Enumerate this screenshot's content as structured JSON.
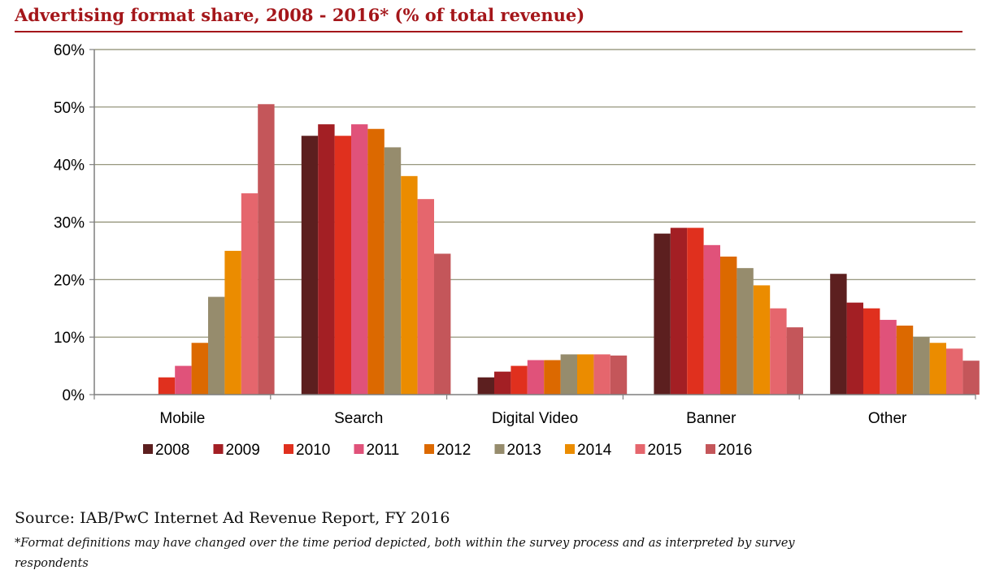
{
  "title": "Advertising format share, 2008 - 2016* (% of total revenue)",
  "source": "Source: IAB/PwC Internet Ad Revenue Report, FY 2016",
  "footnote": "*Format definitions may have changed over the time period depicted, both within the survey process and as interpreted by survey respondents",
  "chart_data": {
    "type": "bar",
    "title": "Advertising format share, 2008 - 2016* (% of total revenue)",
    "xlabel": "",
    "ylabel": "",
    "categories": [
      "Mobile",
      "Search",
      "Digital Video",
      "Banner",
      "Other"
    ],
    "ylim": [
      0,
      60
    ],
    "yticks": [
      0,
      10,
      20,
      30,
      40,
      50,
      60
    ],
    "ytick_labels": [
      "0%",
      "10%",
      "20%",
      "30%",
      "40%",
      "50%",
      "60%"
    ],
    "grid": true,
    "legend_position": "bottom",
    "series": [
      {
        "name": "2008",
        "color": "#5c1f1f",
        "values": [
          0,
          45,
          3,
          28,
          21
        ]
      },
      {
        "name": "2009",
        "color": "#a31f24",
        "values": [
          0,
          47,
          4,
          29,
          16
        ]
      },
      {
        "name": "2010",
        "color": "#e0301e",
        "values": [
          3,
          45,
          5,
          29,
          15
        ]
      },
      {
        "name": "2011",
        "color": "#e0527a",
        "values": [
          5,
          47,
          6,
          26,
          13
        ]
      },
      {
        "name": "2012",
        "color": "#dc6900",
        "values": [
          9,
          46.2,
          6,
          24,
          12
        ]
      },
      {
        "name": "2013",
        "color": "#968c6d",
        "values": [
          17,
          43,
          7,
          22,
          10
        ]
      },
      {
        "name": "2014",
        "color": "#eb8c00",
        "values": [
          25,
          38,
          7,
          19,
          9
        ]
      },
      {
        "name": "2015",
        "color": "#e5666d",
        "values": [
          35,
          34,
          7,
          15,
          8
        ]
      },
      {
        "name": "2016",
        "color": "#c4565a",
        "values": [
          50.5,
          24.5,
          6.8,
          11.7,
          5.9
        ]
      }
    ]
  }
}
